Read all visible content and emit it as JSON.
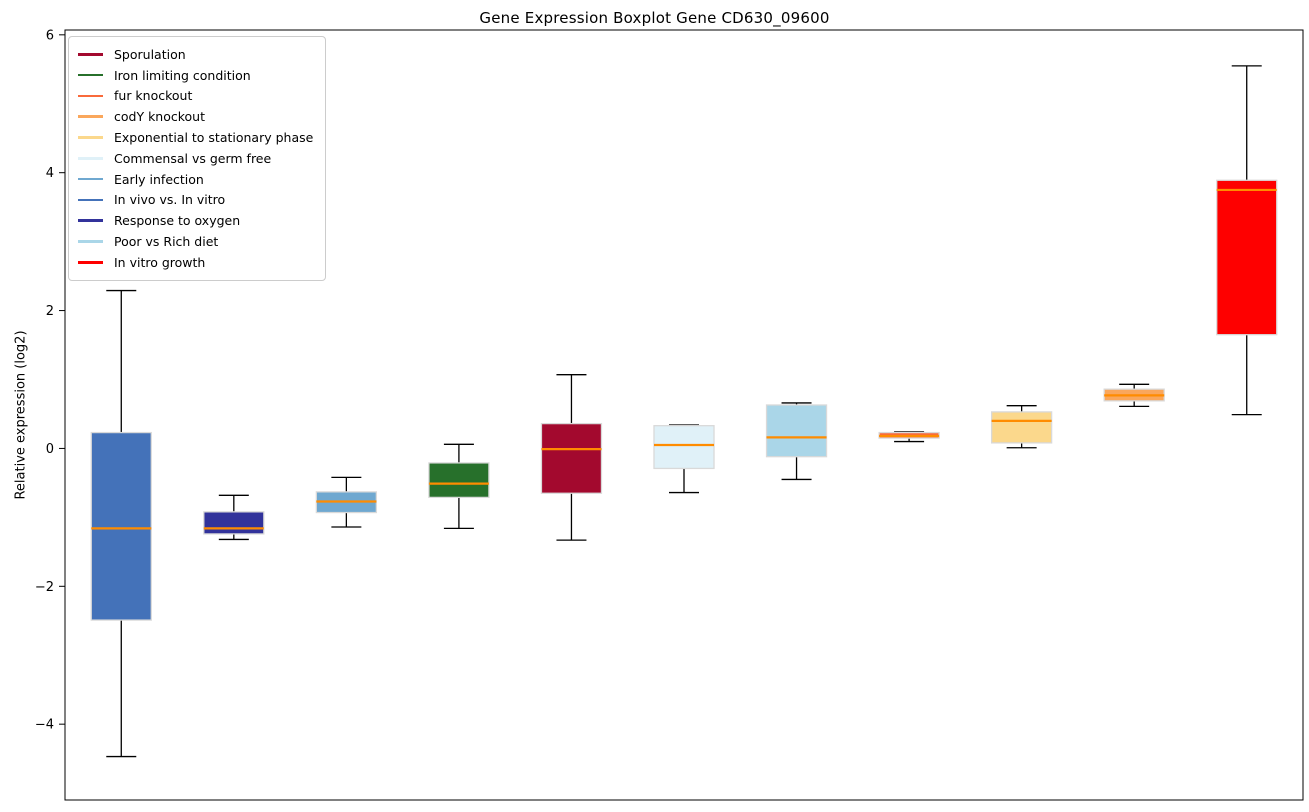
{
  "title": "Gene Expression Boxplot Gene CD630_09600",
  "ylabel": "Relative expression (log2)",
  "chart_data": {
    "type": "boxplot",
    "title": "Gene Expression Boxplot Gene CD630_09600",
    "xlabel": "",
    "ylabel": "Relative expression (log2)",
    "ylim": [
      -5.1,
      6.07
    ],
    "yticks": [
      6,
      4,
      2,
      0,
      -2,
      -4
    ],
    "grid": false,
    "legend_position": "upper left",
    "median_color": "#FF8C00",
    "whisker_color": "#000000",
    "box_edge_color": "#D9D9D9",
    "groups": [
      {
        "name": "In vivo vs. In vitro",
        "color": "#4472B9",
        "whisker_low": -4.47,
        "q1": -2.49,
        "median": -1.16,
        "q3": 0.23,
        "whisker_high": 2.29
      },
      {
        "name": "Response to oxygen",
        "color": "#32339B",
        "whisker_low": -1.32,
        "q1": -1.24,
        "median": -1.16,
        "q3": -0.92,
        "whisker_high": -0.68
      },
      {
        "name": "Early infection",
        "color": "#6FA8D0",
        "whisker_low": -1.14,
        "q1": -0.93,
        "median": -0.77,
        "q3": -0.63,
        "whisker_high": -0.42
      },
      {
        "name": "Iron limiting condition",
        "color": "#27702B",
        "whisker_low": -1.16,
        "q1": -0.71,
        "median": -0.51,
        "q3": -0.21,
        "whisker_high": 0.06
      },
      {
        "name": "Sporulation",
        "color": "#A3092E",
        "whisker_low": -1.33,
        "q1": -0.65,
        "median": -0.01,
        "q3": 0.36,
        "whisker_high": 1.07
      },
      {
        "name": "Commensal vs germ free",
        "color": "#E0F1F8",
        "whisker_low": -0.64,
        "q1": -0.29,
        "median": 0.05,
        "q3": 0.33,
        "whisker_high": 0.34
      },
      {
        "name": "Poor vs Rich diet",
        "color": "#AAD6E8",
        "whisker_low": -0.45,
        "q1": -0.12,
        "median": 0.16,
        "q3": 0.63,
        "whisker_high": 0.66
      },
      {
        "name": "fur knockout",
        "color": "#F96A3B",
        "whisker_low": 0.1,
        "q1": 0.15,
        "median": 0.18,
        "q3": 0.23,
        "whisker_high": 0.24
      },
      {
        "name": "Exponential to stationary phase",
        "color": "#FBD88C",
        "whisker_low": 0.01,
        "q1": 0.08,
        "median": 0.4,
        "q3": 0.53,
        "whisker_high": 0.62
      },
      {
        "name": "codY knockout",
        "color": "#FAA75C",
        "whisker_low": 0.61,
        "q1": 0.69,
        "median": 0.77,
        "q3": 0.86,
        "whisker_high": 0.93
      },
      {
        "name": "In vitro growth",
        "color": "#FE0000",
        "whisker_low": 0.49,
        "q1": 1.65,
        "median": 3.75,
        "q3": 3.89,
        "whisker_high": 5.55
      }
    ],
    "legend_order": [
      "Sporulation",
      "Iron limiting condition",
      "fur knockout",
      "codY knockout",
      "Exponential to stationary phase",
      "Commensal vs germ free",
      "Early infection",
      "In vivo vs. In vitro",
      "Response to oxygen",
      "Poor vs Rich diet",
      "In vitro growth"
    ]
  }
}
